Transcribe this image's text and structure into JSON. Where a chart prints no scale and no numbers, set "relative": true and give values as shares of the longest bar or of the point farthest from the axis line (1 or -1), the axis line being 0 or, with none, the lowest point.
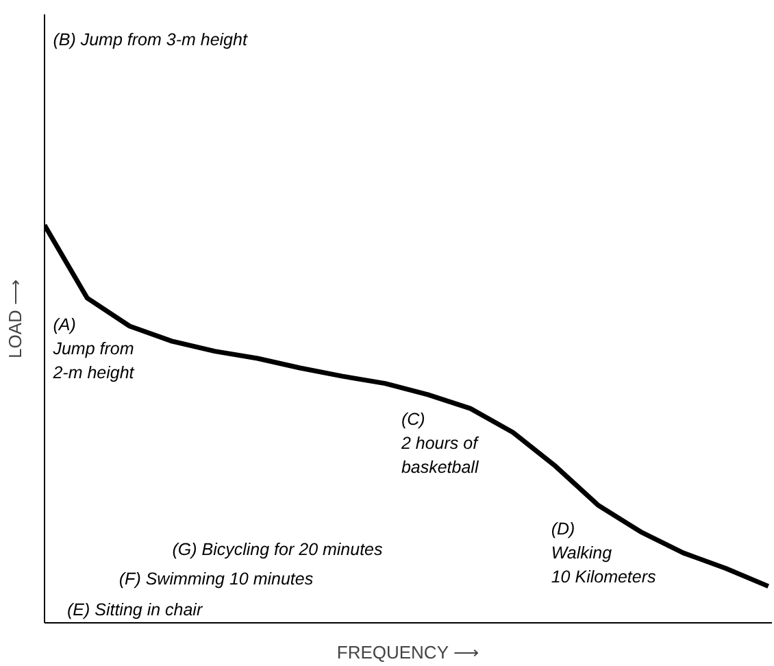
{
  "chart_data": {
    "type": "line",
    "relative": true,
    "xlabel": "FREQUENCY ⟶",
    "ylabel": "LOAD ⟶",
    "categories": [
      null,
      null,
      null,
      null,
      null,
      null,
      null,
      null,
      null,
      null,
      null,
      null,
      null,
      null,
      null,
      null,
      null,
      null
    ],
    "series": [
      {
        "color": "#000000",
        "values": [
          1.0,
          0.817,
          0.746,
          0.708,
          0.683,
          0.665,
          0.641,
          0.62,
          0.602,
          0.574,
          0.539,
          0.479,
          0.394,
          0.296,
          0.229,
          0.176,
          0.137,
          0.092
        ]
      }
    ],
    "annotations": [
      "(B) Jump from 3-m height",
      "(A)\nJump from\n2-m height",
      "(C)\n2 hours of\nbasketball",
      "(D)\nWalking\n10 Kilometers",
      "(G) Bicycling for 20 minutes",
      "(F) Swimming 10 minutes",
      "(E) Sitting in chair"
    ],
    "marker": "none",
    "line_style": "solid"
  }
}
